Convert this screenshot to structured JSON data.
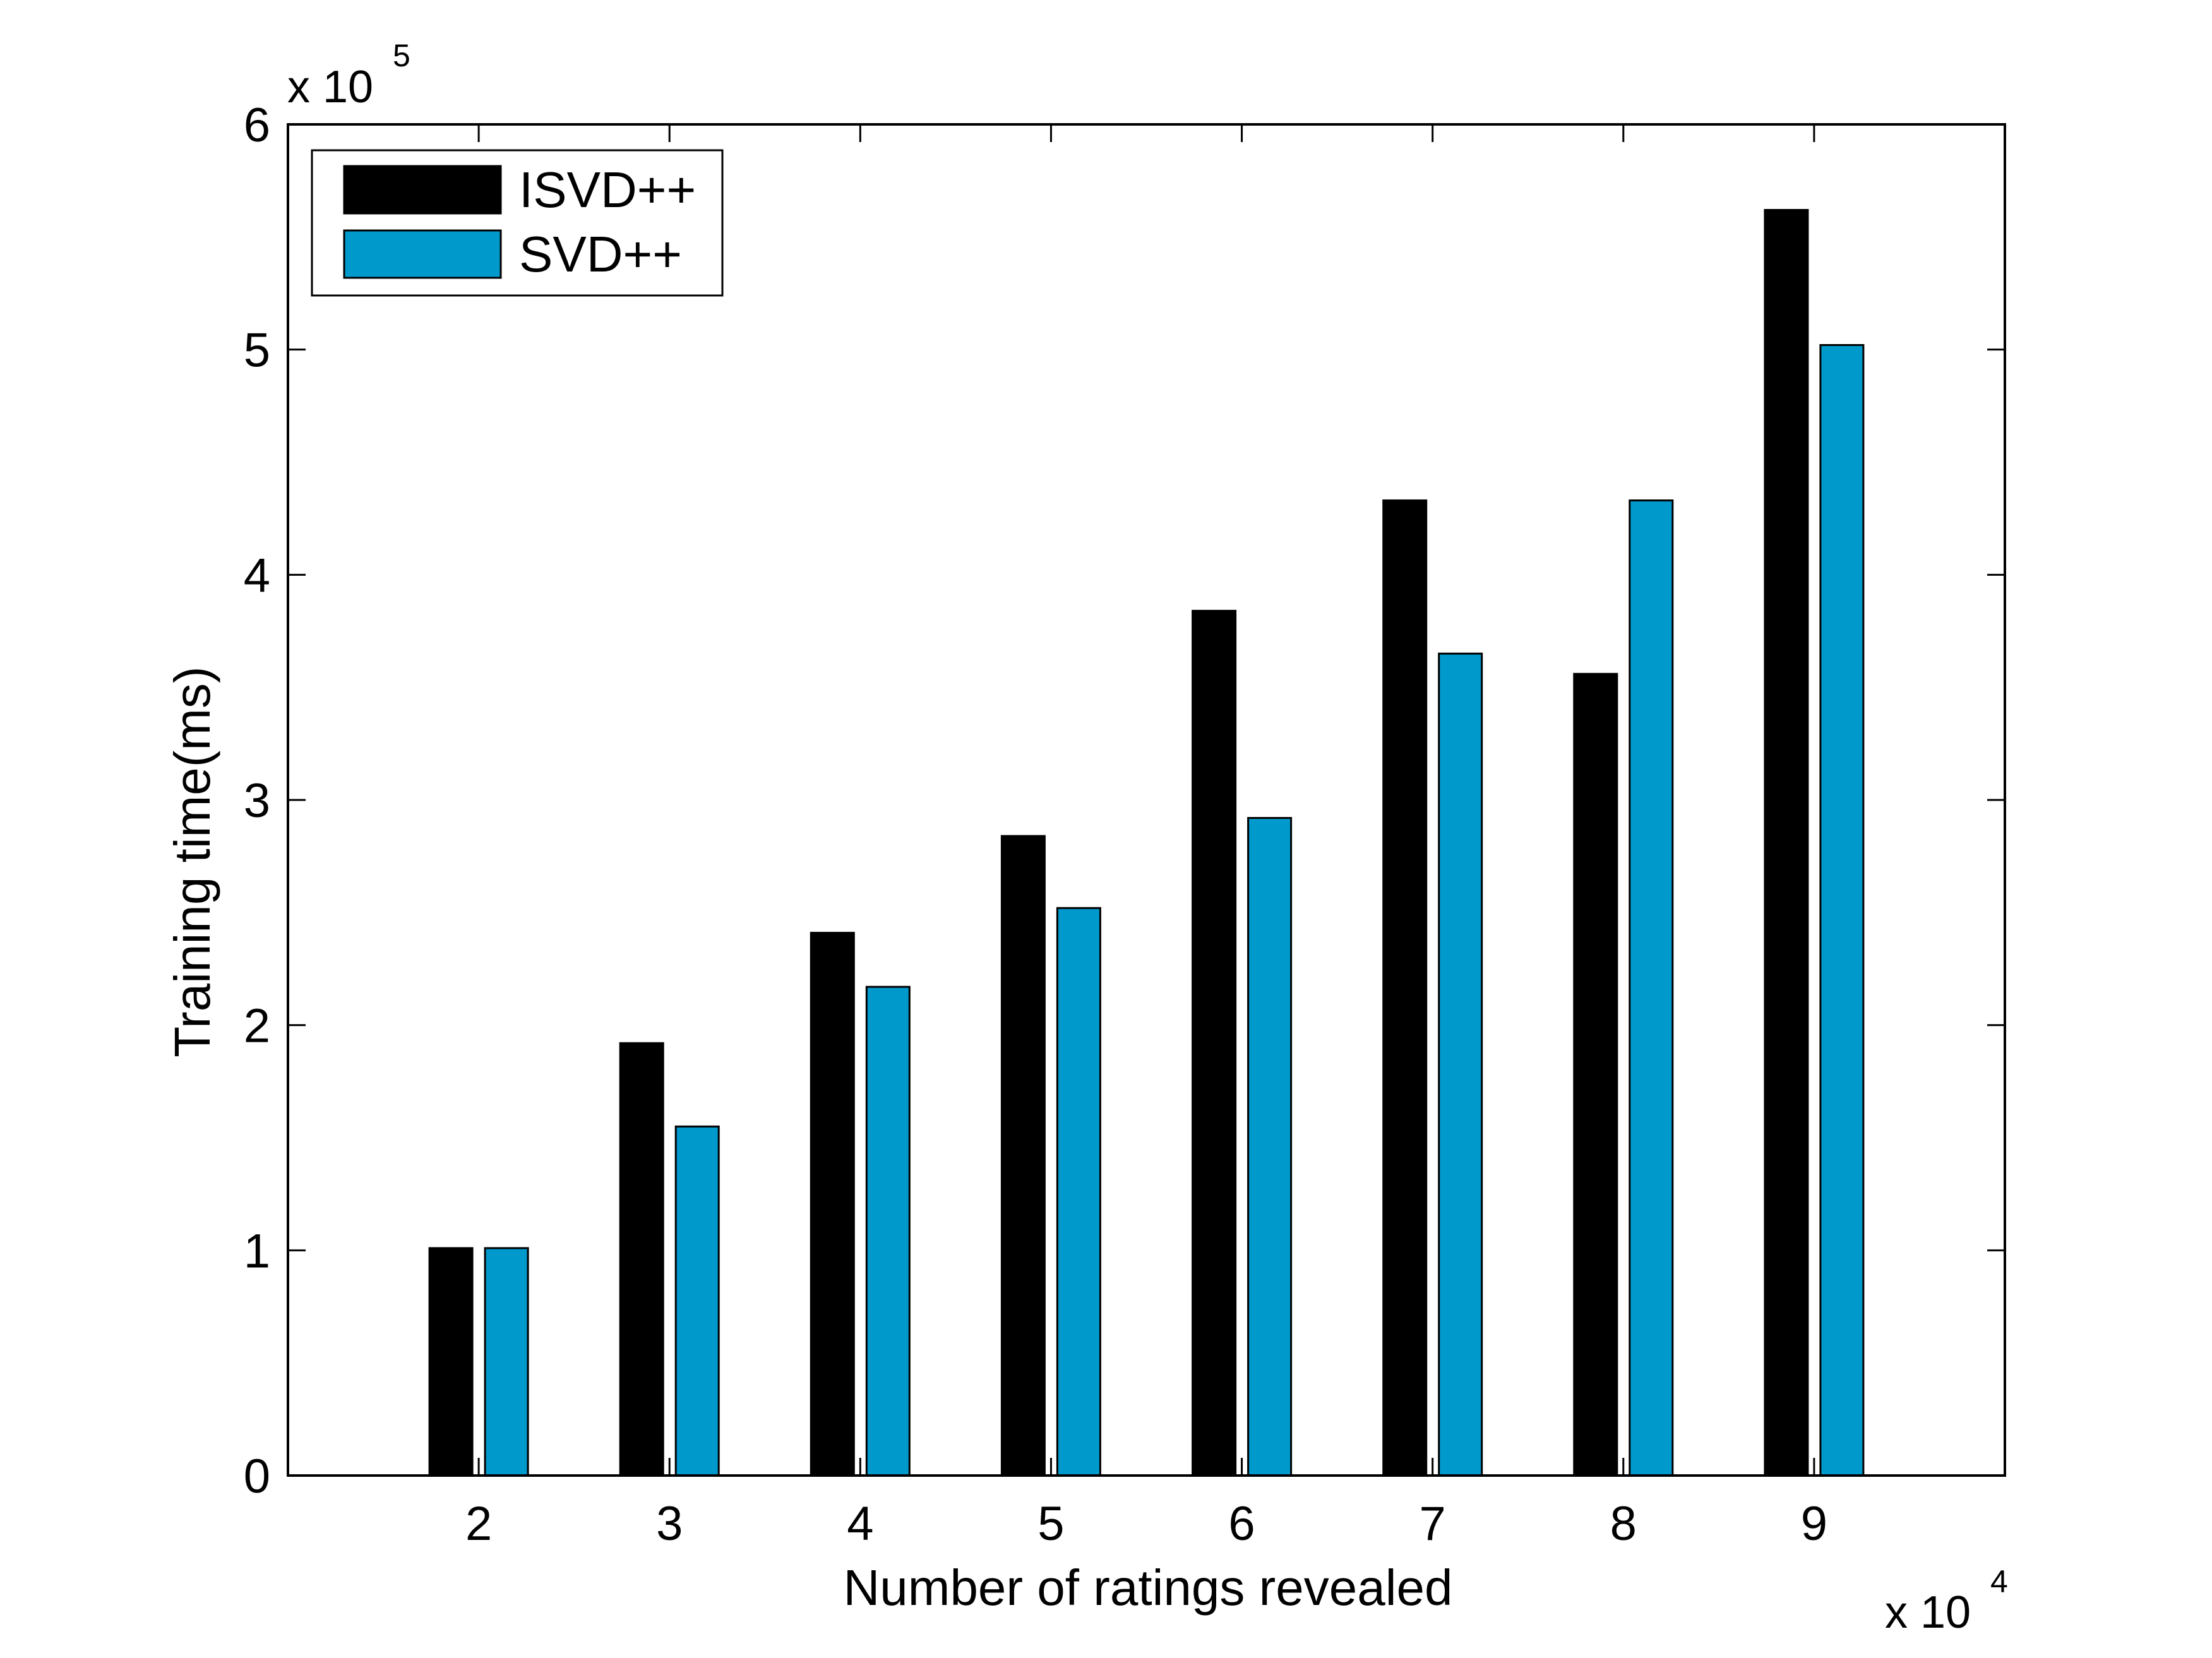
{
  "chart_data": {
    "type": "bar",
    "title": "",
    "xlabel": "Number of ratings revealed",
    "ylabel": "Training time(ms)",
    "x_multiplier": "x 10",
    "x_multiplier_exp": "4",
    "y_multiplier": "x 10",
    "y_multiplier_exp": "5",
    "categories": [
      "2",
      "3",
      "4",
      "5",
      "6",
      "7",
      "8",
      "9"
    ],
    "x_range": [
      1,
      10
    ],
    "ylim": [
      0,
      6
    ],
    "yticks": [
      "0",
      "1",
      "2",
      "3",
      "4",
      "5",
      "6"
    ],
    "grid": false,
    "legend_position": "top-left",
    "series": [
      {
        "name": "ISVD++",
        "color": "#000000",
        "values": [
          1.01,
          1.92,
          2.41,
          2.84,
          3.84,
          4.33,
          3.56,
          5.62
        ]
      },
      {
        "name": "SVD++",
        "color": "#0099cc",
        "values": [
          1.01,
          1.55,
          2.17,
          2.52,
          2.92,
          3.65,
          4.33,
          5.02
        ]
      }
    ]
  }
}
